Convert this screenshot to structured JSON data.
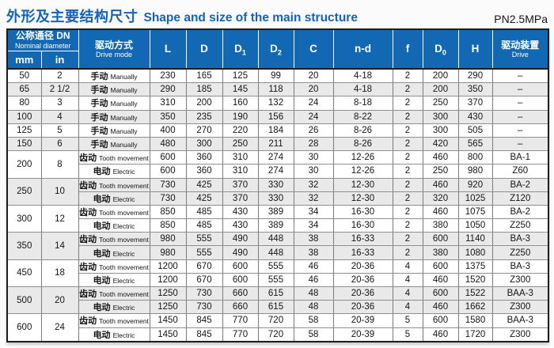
{
  "page": {
    "title_zh": "外形及主要结构尺寸",
    "title_en": "Shape and size of the main structure",
    "pressure_rating": "PN2.5MPa"
  },
  "colors": {
    "header_blue": "#1268b2",
    "title_blue": "#1563b8",
    "row_shaded": "#e9e9e9"
  },
  "table": {
    "header": {
      "dn_zh": "公称通径 DN",
      "dn_en": "Nominal diameter",
      "unit_mm": "mm",
      "unit_in": "in",
      "drive_mode_zh": "驱动方式",
      "drive_mode_en": "Drive mode",
      "columns": [
        {
          "base": "L"
        },
        {
          "base": "D"
        },
        {
          "base": "D",
          "sub": "1"
        },
        {
          "base": "D",
          "sub": "2"
        },
        {
          "base": "C"
        },
        {
          "base": "n-d"
        },
        {
          "base": "f"
        },
        {
          "base": "D",
          "sub": "0"
        },
        {
          "base": "H"
        }
      ],
      "drive_device_zh": "驱动装置",
      "drive_device_en": "Drive"
    },
    "col_keys": [
      "L",
      "D",
      "D1",
      "D2",
      "C",
      "n-d",
      "f",
      "D0",
      "H",
      "drive-device"
    ],
    "groups": [
      {
        "dn_mm": "50",
        "dn_in": "2",
        "rows": [
          {
            "mode_zh": "手动",
            "mode_en": "Manually",
            "values": [
              "230",
              "165",
              "125",
              "99",
              "20",
              "4-18",
              "2",
              "200",
              "290",
              "–"
            ]
          }
        ]
      },
      {
        "dn_mm": "65",
        "dn_in": "2 1/2",
        "rows": [
          {
            "mode_zh": "手动",
            "mode_en": "Manually",
            "values": [
              "290",
              "185",
              "145",
              "118",
              "20",
              "4-18",
              "2",
              "200",
              "350",
              "–"
            ]
          }
        ]
      },
      {
        "dn_mm": "80",
        "dn_in": "3",
        "rows": [
          {
            "mode_zh": "手动",
            "mode_en": "Manually",
            "values": [
              "310",
              "200",
              "160",
              "132",
              "24",
              "8-18",
              "2",
              "250",
              "370",
              "–"
            ]
          }
        ]
      },
      {
        "dn_mm": "100",
        "dn_in": "4",
        "rows": [
          {
            "mode_zh": "手动",
            "mode_en": "Manually",
            "values": [
              "350",
              "235",
              "190",
              "156",
              "24",
              "8-22",
              "2",
              "300",
              "430",
              "–"
            ]
          }
        ]
      },
      {
        "dn_mm": "125",
        "dn_in": "5",
        "rows": [
          {
            "mode_zh": "手动",
            "mode_en": "Manually",
            "values": [
              "400",
              "270",
              "220",
              "184",
              "26",
              "8-26",
              "2",
              "300",
              "505",
              "–"
            ]
          }
        ]
      },
      {
        "dn_mm": "150",
        "dn_in": "6",
        "rows": [
          {
            "mode_zh": "手动",
            "mode_en": "Manually",
            "values": [
              "480",
              "300",
              "250",
              "211",
              "28",
              "8-26",
              "2",
              "420",
              "565",
              "–"
            ]
          }
        ]
      },
      {
        "dn_mm": "200",
        "dn_in": "8",
        "rows": [
          {
            "mode_zh": "齿动",
            "mode_en": "Tooth movement",
            "values": [
              "600",
              "360",
              "310",
              "274",
              "30",
              "12-26",
              "2",
              "460",
              "800",
              "BA-1"
            ]
          },
          {
            "mode_zh": "电动",
            "mode_en": "Electric",
            "values": [
              "600",
              "360",
              "310",
              "274",
              "30",
              "12-26",
              "2",
              "250",
              "980",
              "Z60"
            ]
          }
        ]
      },
      {
        "dn_mm": "250",
        "dn_in": "10",
        "rows": [
          {
            "mode_zh": "齿动",
            "mode_en": "Tooth movement",
            "values": [
              "730",
              "425",
              "370",
              "330",
              "32",
              "12-30",
              "2",
              "460",
              "920",
              "BA-2"
            ]
          },
          {
            "mode_zh": "电动",
            "mode_en": "Electric",
            "values": [
              "730",
              "425",
              "370",
              "330",
              "32",
              "12-30",
              "2",
              "320",
              "1025",
              "Z120"
            ]
          }
        ]
      },
      {
        "dn_mm": "300",
        "dn_in": "12",
        "rows": [
          {
            "mode_zh": "齿动",
            "mode_en": "Tooth movement",
            "values": [
              "850",
              "485",
              "430",
              "389",
              "34",
              "16-30",
              "2",
              "460",
              "1075",
              "BA-2"
            ]
          },
          {
            "mode_zh": "电动",
            "mode_en": "Electric",
            "values": [
              "850",
              "485",
              "430",
              "389",
              "34",
              "16-30",
              "2",
              "380",
              "1050",
              "Z250"
            ]
          }
        ]
      },
      {
        "dn_mm": "350",
        "dn_in": "14",
        "rows": [
          {
            "mode_zh": "齿动",
            "mode_en": "Tooth movement",
            "values": [
              "980",
              "555",
              "490",
              "448",
              "38",
              "16-33",
              "2",
              "600",
              "1140",
              "BA-3"
            ]
          },
          {
            "mode_zh": "电动",
            "mode_en": "Electric",
            "values": [
              "980",
              "555",
              "490",
              "448",
              "38",
              "16-33",
              "2",
              "380",
              "1080",
              "Z250"
            ]
          }
        ]
      },
      {
        "dn_mm": "450",
        "dn_in": "18",
        "rows": [
          {
            "mode_zh": "齿动",
            "mode_en": "Tooth movement",
            "values": [
              "1200",
              "670",
              "600",
              "555",
              "46",
              "20-36",
              "4",
              "600",
              "1375",
              "BA-3"
            ]
          },
          {
            "mode_zh": "电动",
            "mode_en": "Electric",
            "values": [
              "1200",
              "670",
              "600",
              "555",
              "46",
              "20-36",
              "4",
              "460",
              "1520",
              "Z300"
            ]
          }
        ]
      },
      {
        "dn_mm": "500",
        "dn_in": "20",
        "rows": [
          {
            "mode_zh": "齿动",
            "mode_en": "Tooth movement",
            "values": [
              "1250",
              "730",
              "660",
              "615",
              "48",
              "20-36",
              "4",
              "600",
              "1522",
              "BAA-3"
            ]
          },
          {
            "mode_zh": "电动",
            "mode_en": "Electric",
            "values": [
              "1250",
              "730",
              "660",
              "615",
              "48",
              "20-36",
              "4",
              "460",
              "1662",
              "Z300"
            ]
          }
        ]
      },
      {
        "dn_mm": "600",
        "dn_in": "24",
        "rows": [
          {
            "mode_zh": "齿动",
            "mode_en": "Tooth movement",
            "values": [
              "1450",
              "845",
              "770",
              "720",
              "58",
              "20-39",
              "5",
              "600",
              "1580",
              "BAA-3"
            ]
          },
          {
            "mode_zh": "电动",
            "mode_en": "Electric",
            "values": [
              "1450",
              "845",
              "770",
              "720",
              "58",
              "20-39",
              "5",
              "460",
              "1720",
              "Z300"
            ]
          }
        ]
      }
    ]
  }
}
